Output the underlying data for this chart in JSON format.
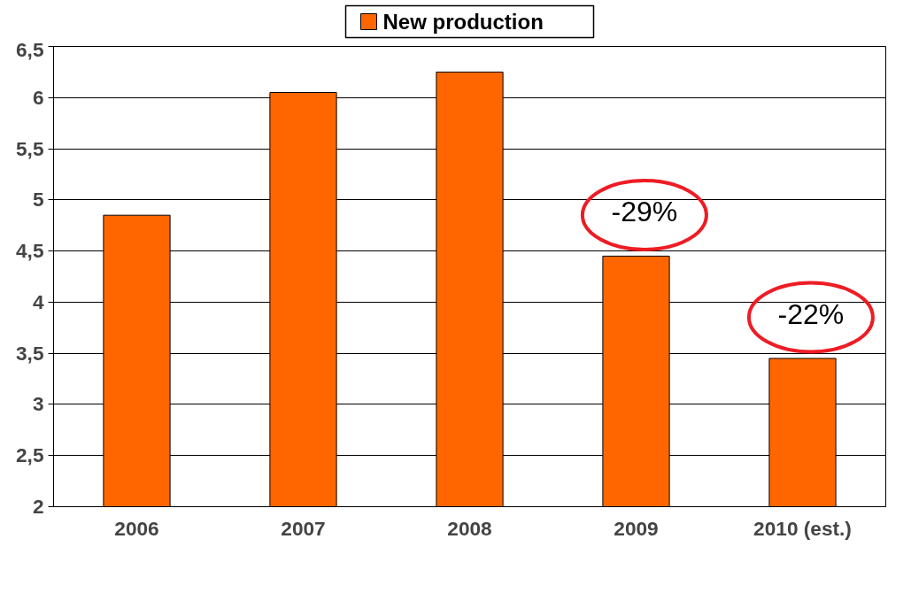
{
  "chart_data": {
    "type": "bar",
    "categories": [
      "2006",
      "2007",
      "2008",
      "2009",
      "2010 (est.)"
    ],
    "series": [
      {
        "name": "New production",
        "color": "#ff6600",
        "values": [
          4.85,
          6.05,
          6.25,
          4.45,
          3.45
        ]
      }
    ],
    "ylim": [
      2,
      6.5
    ],
    "yticks": [
      2,
      {
        "value": 2.5,
        "label": "2,5"
      },
      3,
      {
        "value": 3.5,
        "label": "3,5"
      },
      4,
      {
        "value": 4.5,
        "label": "4,5"
      },
      5,
      {
        "value": 5.5,
        "label": "5,5"
      },
      6,
      {
        "value": 6.5,
        "label": "6,5"
      }
    ],
    "grid": "y",
    "legend": "top",
    "annotations": [
      {
        "text": "-29%",
        "x": "2009",
        "y": 4.45
      },
      {
        "text": "-22%",
        "x": "2010 (est.)",
        "y": 3.45
      }
    ]
  }
}
